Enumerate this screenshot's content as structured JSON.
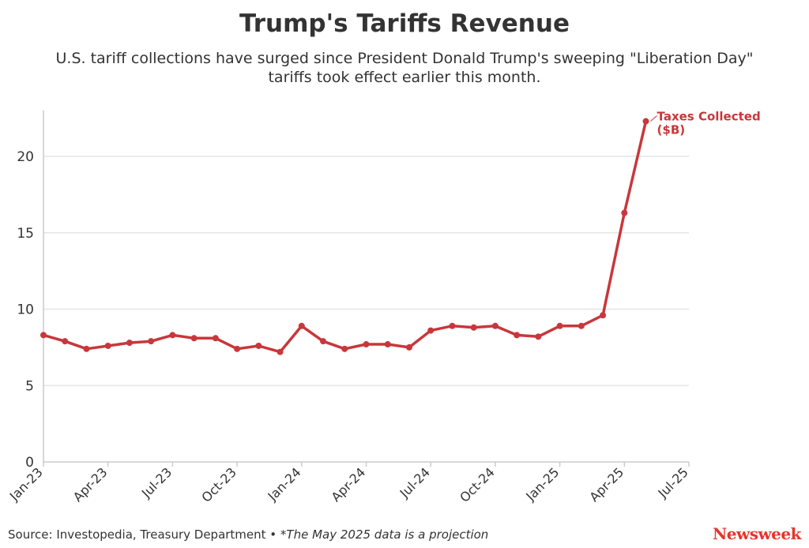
{
  "header": {
    "title": "Trump's Tariffs Revenue",
    "subtitle": "U.S. tariff collections have surged since President Donald Trump's sweeping \"Liberation Day\" tariffs took effect earlier this month."
  },
  "footer": {
    "source": "Source: Investopedia, Treasury Department • ",
    "note": "*The May 2025 data is a projection",
    "brand": "Newsweek"
  },
  "colors": {
    "line": "#c8373b",
    "grid": "#e6e6e6",
    "axis": "#cccccc",
    "text": "#333333"
  },
  "chart_data": {
    "type": "line",
    "title": "Trump's Tariffs Revenue",
    "xlabel": "",
    "ylabel": "",
    "x": [
      "2023-01",
      "2023-02",
      "2023-03",
      "2023-04",
      "2023-05",
      "2023-06",
      "2023-07",
      "2023-08",
      "2023-09",
      "2023-10",
      "2023-11",
      "2023-12",
      "2024-01",
      "2024-02",
      "2024-03",
      "2024-04",
      "2024-05",
      "2024-06",
      "2024-07",
      "2024-08",
      "2024-09",
      "2024-10",
      "2024-11",
      "2024-12",
      "2025-01",
      "2025-02",
      "2025-03",
      "2025-04",
      "2025-05"
    ],
    "series": [
      {
        "name": "Taxes Collected ($B)",
        "values": [
          8.3,
          7.9,
          7.4,
          7.6,
          7.8,
          7.9,
          8.3,
          8.1,
          8.1,
          7.4,
          7.6,
          7.2,
          8.9,
          7.9,
          7.4,
          7.7,
          7.7,
          7.5,
          8.6,
          8.9,
          8.8,
          8.9,
          8.3,
          8.2,
          8.9,
          8.9,
          9.6,
          16.3,
          22.3
        ],
        "label_lines": [
          "Taxes Collected",
          "($B)"
        ]
      }
    ],
    "xticks": [
      "Jan-23",
      "Apr-23",
      "Jul-23",
      "Oct-23",
      "Jan-24",
      "Apr-24",
      "Jul-24",
      "Oct-24",
      "Jan-25",
      "Apr-25",
      "Jul-25"
    ],
    "xtick_months": [
      "2023-01",
      "2023-04",
      "2023-07",
      "2023-10",
      "2024-01",
      "2024-04",
      "2024-07",
      "2024-10",
      "2025-01",
      "2025-04",
      "2025-07"
    ],
    "yticks": [
      0,
      5,
      10,
      15,
      20
    ],
    "ylim": [
      0,
      23
    ],
    "xlim": [
      "2023-01",
      "2025-07"
    ],
    "grid": true,
    "legend": "inline-label-end"
  }
}
